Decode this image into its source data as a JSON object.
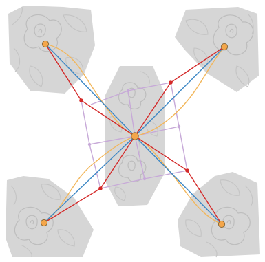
{
  "diagram": {
    "colors": {
      "background": "#ffffff",
      "tile_fill": "#d6d6d6",
      "rose_line": "#bdbdbd",
      "center_node": "#f4a64a",
      "outer_node": "#f4a64a",
      "node_outline": "#8a6a3a",
      "blue_link": "#3b86c4",
      "red_link": "#d42a2a",
      "orange_link": "#f2b65a",
      "purple_link": "#c7a9d8"
    },
    "tiles": [
      {
        "id": "top-left"
      },
      {
        "id": "top-right"
      },
      {
        "id": "center"
      },
      {
        "id": "bottom-left"
      },
      {
        "id": "bottom-right"
      }
    ],
    "nodes": {
      "hub": {
        "id": "hub",
        "role": "center"
      },
      "leaves": [
        {
          "id": "top-left"
        },
        {
          "id": "top-right"
        },
        {
          "id": "bottom-left"
        },
        {
          "id": "bottom-right"
        }
      ]
    },
    "link_kinds": [
      "straight",
      "bent",
      "curved",
      "frame"
    ]
  }
}
